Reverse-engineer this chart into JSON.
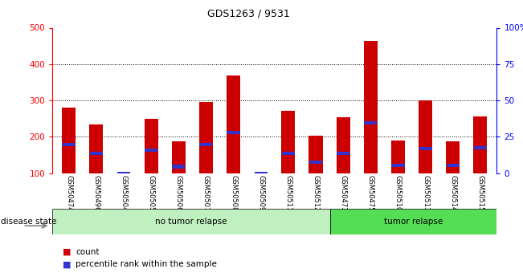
{
  "title": "GDS1263 / 9531",
  "samples": [
    "GSM50474",
    "GSM50496",
    "GSM50504",
    "GSM50505",
    "GSM50506",
    "GSM50507",
    "GSM50508",
    "GSM50509",
    "GSM50511",
    "GSM50512",
    "GSM50473",
    "GSM50475",
    "GSM50510",
    "GSM50513",
    "GSM50514",
    "GSM50515"
  ],
  "red_bar_heights": [
    280,
    233,
    100,
    250,
    187,
    295,
    368,
    100,
    272,
    203,
    253,
    463,
    190,
    300,
    187,
    257
  ],
  "blue_marker_values": [
    178,
    155,
    100,
    163,
    118,
    178,
    212,
    100,
    155,
    130,
    155,
    238,
    122,
    168,
    122,
    170
  ],
  "no_tumor_count": 10,
  "tumor_count": 6,
  "ylim_left": [
    100,
    500
  ],
  "ylim_right": [
    0,
    100
  ],
  "yticks_left": [
    100,
    200,
    300,
    400,
    500
  ],
  "yticks_right": [
    0,
    25,
    50,
    75,
    100
  ],
  "yticklabels_right": [
    "0",
    "25",
    "50",
    "75",
    "100%"
  ],
  "bar_color": "#cc0000",
  "blue_color": "#3333cc",
  "label_area_color": "#c8c8c8",
  "no_tumor_color": "#c0f0c0",
  "tumor_color": "#55dd55",
  "legend_count": "count",
  "legend_pct": "percentile rank within the sample",
  "disease_label": "disease state",
  "no_tumor_label": "no tumor relapse",
  "tumor_label": "tumor relapse",
  "bar_width": 0.5,
  "blue_bar_height": 9
}
